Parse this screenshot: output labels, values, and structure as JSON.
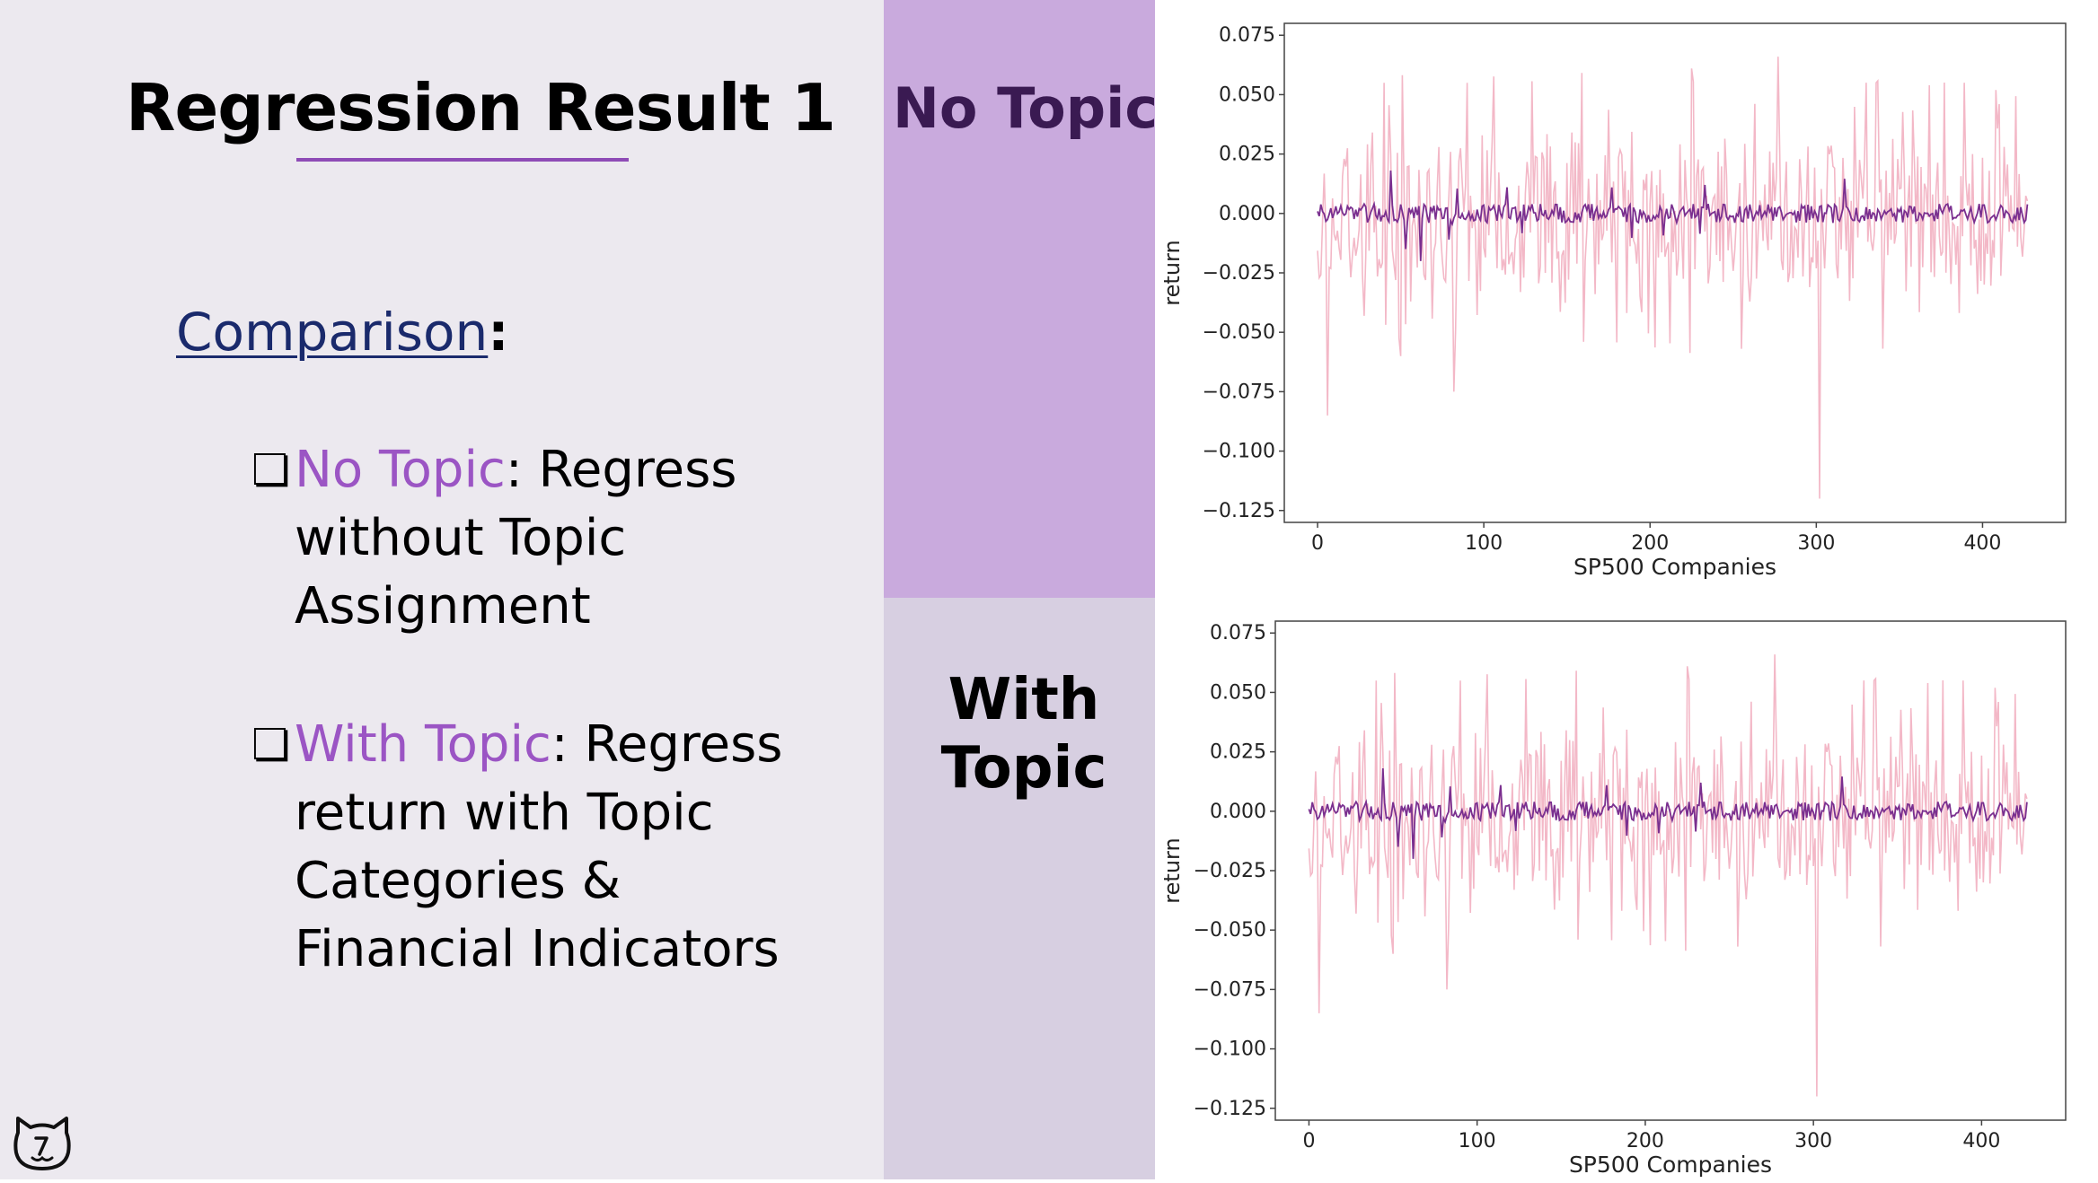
{
  "slide": {
    "title": "Regression Result 1",
    "comparison_label": "Comparison",
    "comparison_colon": ":",
    "bullets": [
      {
        "highlight": "No Topic",
        "text": ": Regress without Topic Assignment"
      },
      {
        "highlight": "With Topic",
        "text": ": Regress return with Topic Categories & Financial Indicators"
      }
    ],
    "bullet_glyph": "❏"
  },
  "bands": {
    "top_label": "No Topic",
    "bottom_label_line1": "With",
    "bottom_label_line2": "Topic"
  },
  "colors": {
    "accent_purple": "#9b55c4",
    "pink_series": "#f3b8c7",
    "purple_series": "#7a2f8f",
    "top_band": "#c9aadd",
    "bottom_band": "#d7cfe1"
  },
  "chart_data": [
    {
      "type": "line",
      "xlabel": "SP500 Companies",
      "ylabel": "return",
      "xlim": [
        -20,
        450
      ],
      "ylim": [
        -0.13,
        0.08
      ],
      "xticks": [
        0,
        100,
        200,
        300,
        400
      ],
      "yticks": [
        0.075,
        0.05,
        0.025,
        0.0,
        -0.025,
        -0.05,
        -0.075,
        -0.1,
        -0.125
      ],
      "ytick_labels": [
        "0.075",
        "0.050",
        "0.025",
        "0.000",
        "−0.025",
        "−0.050",
        "−0.075",
        "−0.100",
        "−0.125"
      ],
      "xtick_labels": [
        "0",
        "100",
        "200",
        "300",
        "400"
      ],
      "grid": false,
      "series_count": 2,
      "x_range": [
        0,
        427
      ],
      "series_extremes": {
        "pink_max": 0.066,
        "pink_min": -0.12,
        "purple_max": 0.012,
        "purple_min": -0.02
      }
    },
    {
      "type": "line",
      "xlabel": "SP500 Companies",
      "ylabel": "return",
      "xlim": [
        -20,
        450
      ],
      "ylim": [
        -0.13,
        0.08
      ],
      "xticks": [
        0,
        100,
        200,
        300,
        400
      ],
      "yticks": [
        0.075,
        0.05,
        0.025,
        0.0,
        -0.025,
        -0.05,
        -0.075,
        -0.1,
        -0.125
      ],
      "ytick_labels": [
        "0.075",
        "0.050",
        "0.025",
        "0.000",
        "−0.025",
        "−0.050",
        "−0.075",
        "−0.100",
        "−0.125"
      ],
      "xtick_labels": [
        "0",
        "100",
        "200",
        "300",
        "400"
      ],
      "grid": false,
      "series_count": 2,
      "x_range": [
        0,
        427
      ],
      "series_extremes": {
        "pink_max": 0.066,
        "pink_min": -0.12,
        "purple_max": 0.012,
        "purple_min": -0.02
      }
    }
  ]
}
